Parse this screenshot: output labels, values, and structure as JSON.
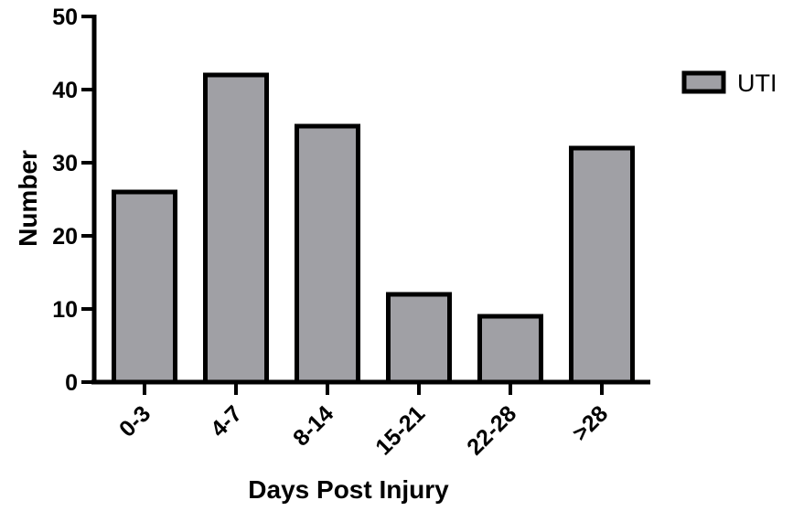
{
  "chart_data": {
    "type": "bar",
    "categories": [
      "0-3",
      "4-7",
      "8-14",
      "15-21",
      "22-28",
      ">28"
    ],
    "series": [
      {
        "name": "UTI",
        "values": [
          26,
          42,
          35,
          12,
          9,
          32
        ]
      }
    ],
    "xlabel": "Days Post Injury",
    "ylabel": "Number",
    "ylim": [
      0,
      50
    ],
    "yticks": [
      0,
      10,
      20,
      30,
      40,
      50
    ],
    "grid": false,
    "legend_position": "top-right",
    "colors": {
      "bar_fill": "#a0a0a5",
      "bar_stroke": "#000000",
      "axis": "#000000"
    }
  }
}
